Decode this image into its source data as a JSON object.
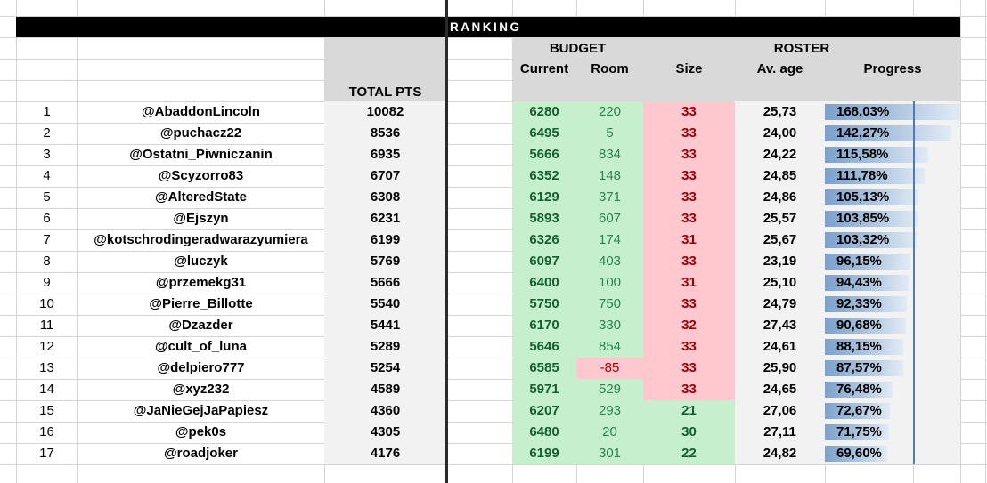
{
  "banner": {
    "title": "RANKING"
  },
  "header": {
    "total_pts": "TOTAL PTS",
    "budget_group": "BUDGET",
    "roster_group": "ROSTER",
    "current": "Current",
    "room": "Room",
    "size": "Size",
    "av_age": "Av. age",
    "progress": "Progress"
  },
  "colors": {
    "banner_bg": "#000000",
    "banner_text": "#ffffff",
    "header_gray": "#d9d9d9",
    "zone_gray": "#f2f2f2",
    "good_bg": "#c6efce",
    "good_text_bold": "#155f2e",
    "good_text_regular": "#2f8050",
    "bad_bg": "#ffc7ce",
    "bad_text": "#9c0006",
    "bar_left": "#7ba1cb",
    "bar_mid": "#aac3de",
    "bar_right": "#e2ebf5",
    "axis_line": "#4d7cb5"
  },
  "rows": [
    {
      "rank": "1",
      "user": "@AbaddonLincoln",
      "total": "10082",
      "current": "6280",
      "room": "220",
      "room_state": "good",
      "size": "33",
      "size_state": "bad",
      "av_age": "25,73",
      "progress": "168,03%",
      "progress_value": 168.03
    },
    {
      "rank": "2",
      "user": "@puchacz22",
      "total": "8536",
      "current": "6495",
      "room": "5",
      "room_state": "good",
      "size": "33",
      "size_state": "bad",
      "av_age": "24,00",
      "progress": "142,27%",
      "progress_value": 142.27
    },
    {
      "rank": "3",
      "user": "@Ostatni_Piwniczanin",
      "total": "6935",
      "current": "5666",
      "room": "834",
      "room_state": "good",
      "size": "33",
      "size_state": "bad",
      "av_age": "24,22",
      "progress": "115,58%",
      "progress_value": 115.58
    },
    {
      "rank": "4",
      "user": "@Scyzorro83",
      "total": "6707",
      "current": "6352",
      "room": "148",
      "room_state": "good",
      "size": "33",
      "size_state": "bad",
      "av_age": "24,85",
      "progress": "111,78%",
      "progress_value": 111.78
    },
    {
      "rank": "5",
      "user": "@AlteredState",
      "total": "6308",
      "current": "6129",
      "room": "371",
      "room_state": "good",
      "size": "33",
      "size_state": "bad",
      "av_age": "24,86",
      "progress": "105,13%",
      "progress_value": 105.13
    },
    {
      "rank": "6",
      "user": "@Ejszyn",
      "total": "6231",
      "current": "5893",
      "room": "607",
      "room_state": "good",
      "size": "33",
      "size_state": "bad",
      "av_age": "25,57",
      "progress": "103,85%",
      "progress_value": 103.85
    },
    {
      "rank": "7",
      "user": "@kotschrodingeradwarazyumiera",
      "total": "6199",
      "current": "6326",
      "room": "174",
      "room_state": "good",
      "size": "31",
      "size_state": "bad",
      "av_age": "25,67",
      "progress": "103,32%",
      "progress_value": 103.32
    },
    {
      "rank": "8",
      "user": "@luczyk",
      "total": "5769",
      "current": "6097",
      "room": "403",
      "room_state": "good",
      "size": "33",
      "size_state": "bad",
      "av_age": "23,19",
      "progress": "96,15%",
      "progress_value": 96.15
    },
    {
      "rank": "9",
      "user": "@przemekg31",
      "total": "5666",
      "current": "6400",
      "room": "100",
      "room_state": "good",
      "size": "31",
      "size_state": "bad",
      "av_age": "25,10",
      "progress": "94,43%",
      "progress_value": 94.43
    },
    {
      "rank": "10",
      "user": "@Pierre_Billotte",
      "total": "5540",
      "current": "5750",
      "room": "750",
      "room_state": "good",
      "size": "33",
      "size_state": "bad",
      "av_age": "24,79",
      "progress": "92,33%",
      "progress_value": 92.33
    },
    {
      "rank": "11",
      "user": "@Dzazder",
      "total": "5441",
      "current": "6170",
      "room": "330",
      "room_state": "good",
      "size": "32",
      "size_state": "bad",
      "av_age": "27,43",
      "progress": "90,68%",
      "progress_value": 90.68
    },
    {
      "rank": "12",
      "user": "@cult_of_luna",
      "total": "5289",
      "current": "5646",
      "room": "854",
      "room_state": "good",
      "size": "33",
      "size_state": "bad",
      "av_age": "24,61",
      "progress": "88,15%",
      "progress_value": 88.15
    },
    {
      "rank": "13",
      "user": "@delpiero777",
      "total": "5254",
      "current": "6585",
      "room": "-85",
      "room_state": "bad",
      "size": "33",
      "size_state": "bad",
      "av_age": "25,90",
      "progress": "87,57%",
      "progress_value": 87.57
    },
    {
      "rank": "14",
      "user": "@xyz232",
      "total": "4589",
      "current": "5971",
      "room": "529",
      "room_state": "good",
      "size": "33",
      "size_state": "bad",
      "av_age": "24,65",
      "progress": "76,48%",
      "progress_value": 76.48
    },
    {
      "rank": "15",
      "user": "@JaNieGejJaPapiesz",
      "total": "4360",
      "current": "6207",
      "room": "293",
      "room_state": "good",
      "size": "21",
      "size_state": "good",
      "av_age": "27,06",
      "progress": "72,67%",
      "progress_value": 72.67
    },
    {
      "rank": "16",
      "user": "@pek0s",
      "total": "4305",
      "current": "6480",
      "room": "20",
      "room_state": "good",
      "size": "30",
      "size_state": "good",
      "av_age": "27,11",
      "progress": "71,75%",
      "progress_value": 71.75
    },
    {
      "rank": "17",
      "user": "@roadjoker",
      "total": "4176",
      "current": "6199",
      "room": "301",
      "room_state": "good",
      "size": "22",
      "size_state": "good",
      "av_age": "24,82",
      "progress": "69,60%",
      "progress_value": 69.6
    }
  ]
}
